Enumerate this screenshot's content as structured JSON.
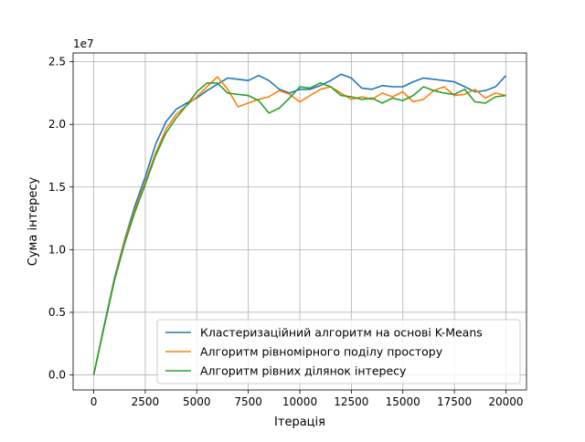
{
  "chart_data": {
    "type": "line",
    "title": "",
    "xlabel": "Ітерація",
    "ylabel": "Сума інтересу",
    "y_scale_label": "1e7",
    "xlim": [
      -1000,
      21000
    ],
    "ylim": [
      -1200000,
      25700000
    ],
    "grid": true,
    "legend_position": "lower-right",
    "x_ticks": [
      {
        "value": 0,
        "label": "0"
      },
      {
        "value": 2500,
        "label": "2500"
      },
      {
        "value": 5000,
        "label": "5000"
      },
      {
        "value": 7500,
        "label": "7500"
      },
      {
        "value": 10000,
        "label": "10000"
      },
      {
        "value": 12500,
        "label": "12500"
      },
      {
        "value": 15000,
        "label": "15000"
      },
      {
        "value": 17500,
        "label": "17500"
      },
      {
        "value": 20000,
        "label": "20000"
      }
    ],
    "y_ticks": [
      {
        "value": 0,
        "label": "0.0"
      },
      {
        "value": 5000000,
        "label": "0.5"
      },
      {
        "value": 10000000,
        "label": "1.0"
      },
      {
        "value": 15000000,
        "label": "1.5"
      },
      {
        "value": 20000000,
        "label": "2.0"
      },
      {
        "value": 25000000,
        "label": "2.5"
      }
    ],
    "series": [
      {
        "name": "Кластеризаційний алгоритм на основі K-Means",
        "color": "#1f77b4",
        "points": [
          [
            0,
            0
          ],
          [
            500,
            3900000
          ],
          [
            1000,
            7700000
          ],
          [
            1500,
            10800000
          ],
          [
            2000,
            13500000
          ],
          [
            2500,
            15800000
          ],
          [
            3000,
            18400000
          ],
          [
            3500,
            20200000
          ],
          [
            4000,
            21200000
          ],
          [
            4500,
            21700000
          ],
          [
            5000,
            22100000
          ],
          [
            5500,
            22700000
          ],
          [
            6000,
            23200000
          ],
          [
            6500,
            23700000
          ],
          [
            7000,
            23600000
          ],
          [
            7500,
            23500000
          ],
          [
            8000,
            23900000
          ],
          [
            8500,
            23500000
          ],
          [
            9000,
            22800000
          ],
          [
            9500,
            22500000
          ],
          [
            10000,
            22800000
          ],
          [
            10500,
            22800000
          ],
          [
            11000,
            23100000
          ],
          [
            11500,
            23500000
          ],
          [
            12000,
            24000000
          ],
          [
            12500,
            23700000
          ],
          [
            13000,
            22900000
          ],
          [
            13500,
            22800000
          ],
          [
            14000,
            23100000
          ],
          [
            14500,
            23000000
          ],
          [
            15000,
            23000000
          ],
          [
            15500,
            23400000
          ],
          [
            16000,
            23700000
          ],
          [
            16500,
            23600000
          ],
          [
            17000,
            23500000
          ],
          [
            17500,
            23400000
          ],
          [
            18000,
            23000000
          ],
          [
            18500,
            22600000
          ],
          [
            19000,
            22700000
          ],
          [
            19500,
            23000000
          ],
          [
            20000,
            23900000
          ]
        ]
      },
      {
        "name": "Алгоритм рівномірного поділу простору",
        "color": "#ff7f0e",
        "points": [
          [
            0,
            0
          ],
          [
            500,
            3800000
          ],
          [
            1000,
            7600000
          ],
          [
            1500,
            10700000
          ],
          [
            2000,
            13200000
          ],
          [
            2500,
            15400000
          ],
          [
            3000,
            17700000
          ],
          [
            3500,
            19600000
          ],
          [
            4000,
            20800000
          ],
          [
            4500,
            21500000
          ],
          [
            5000,
            22200000
          ],
          [
            5500,
            23000000
          ],
          [
            6000,
            23800000
          ],
          [
            6500,
            22800000
          ],
          [
            7000,
            21400000
          ],
          [
            7500,
            21700000
          ],
          [
            8000,
            22000000
          ],
          [
            8500,
            22200000
          ],
          [
            9000,
            22700000
          ],
          [
            9500,
            22400000
          ],
          [
            10000,
            21800000
          ],
          [
            10500,
            22300000
          ],
          [
            11000,
            22800000
          ],
          [
            11500,
            23000000
          ],
          [
            12000,
            22500000
          ],
          [
            12500,
            22000000
          ],
          [
            13000,
            22200000
          ],
          [
            13500,
            22000000
          ],
          [
            14000,
            22500000
          ],
          [
            14500,
            22200000
          ],
          [
            15000,
            22600000
          ],
          [
            15500,
            21800000
          ],
          [
            16000,
            22000000
          ],
          [
            16500,
            22700000
          ],
          [
            17000,
            23000000
          ],
          [
            17500,
            22300000
          ],
          [
            18000,
            22400000
          ],
          [
            18500,
            22800000
          ],
          [
            19000,
            22100000
          ],
          [
            19500,
            22500000
          ],
          [
            20000,
            22300000
          ]
        ]
      },
      {
        "name": "Алгоритм рівних ділянок інтересу",
        "color": "#2ca02c",
        "points": [
          [
            0,
            0
          ],
          [
            500,
            3800000
          ],
          [
            1000,
            7500000
          ],
          [
            1500,
            10500000
          ],
          [
            2000,
            13000000
          ],
          [
            2500,
            15200000
          ],
          [
            3000,
            17500000
          ],
          [
            3500,
            19300000
          ],
          [
            4000,
            20500000
          ],
          [
            4500,
            21500000
          ],
          [
            5000,
            22600000
          ],
          [
            5500,
            23300000
          ],
          [
            6000,
            23300000
          ],
          [
            6500,
            22500000
          ],
          [
            7000,
            22400000
          ],
          [
            7500,
            22300000
          ],
          [
            8000,
            21900000
          ],
          [
            8500,
            20900000
          ],
          [
            9000,
            21300000
          ],
          [
            9500,
            22100000
          ],
          [
            10000,
            23000000
          ],
          [
            10500,
            22900000
          ],
          [
            11000,
            23300000
          ],
          [
            11500,
            23000000
          ],
          [
            12000,
            22300000
          ],
          [
            12500,
            22200000
          ],
          [
            13000,
            22000000
          ],
          [
            13500,
            22100000
          ],
          [
            14000,
            21700000
          ],
          [
            14500,
            22100000
          ],
          [
            15000,
            21900000
          ],
          [
            15500,
            22300000
          ],
          [
            16000,
            23000000
          ],
          [
            16500,
            22700000
          ],
          [
            17000,
            22500000
          ],
          [
            17500,
            22400000
          ],
          [
            18000,
            22800000
          ],
          [
            18500,
            21800000
          ],
          [
            19000,
            21700000
          ],
          [
            19500,
            22200000
          ],
          [
            20000,
            22300000
          ]
        ]
      }
    ]
  }
}
